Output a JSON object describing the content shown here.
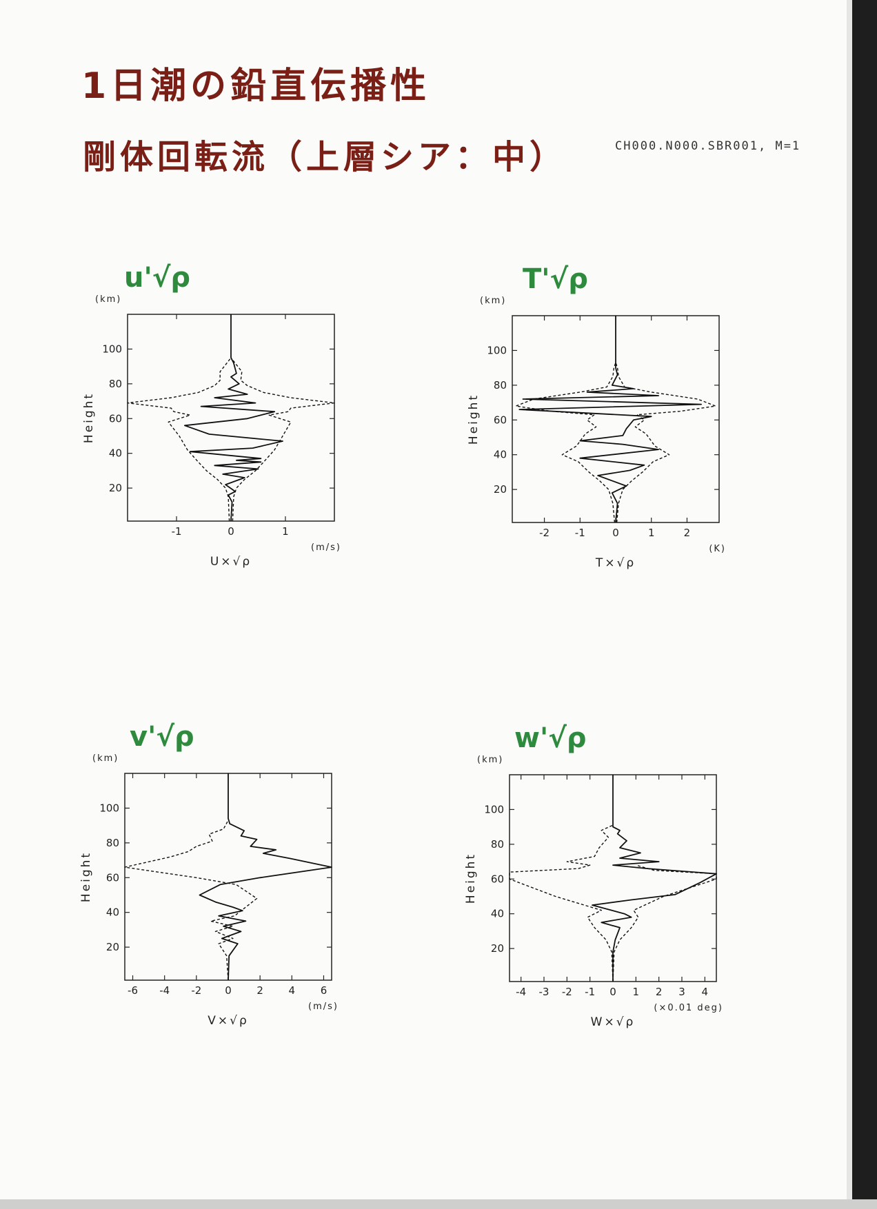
{
  "header": {
    "title_line1": "1日潮の鉛直伝播性",
    "title_line2": "剛体回転流（上層シア：中）",
    "run_id": "CH000.N000.SBR001, M=1"
  },
  "chart_data": [
    {
      "type": "line",
      "annotation": "u'√ρ",
      "xlabel": "U×√ρ",
      "xunit": "(m/s)",
      "ylabel": "Height",
      "yunit": "(km)",
      "xlim": [
        -1.9,
        1.9
      ],
      "ylim": [
        1,
        120
      ],
      "xticks": [
        -1,
        0,
        1
      ],
      "yticks": [
        20,
        40,
        60,
        80,
        100
      ],
      "series": [
        {
          "style": "solid",
          "points": [
            [
              0,
              1
            ],
            [
              0.02,
              12
            ],
            [
              -0.05,
              16
            ],
            [
              0.08,
              18
            ],
            [
              -0.1,
              22
            ],
            [
              0.25,
              26
            ],
            [
              -0.15,
              28
            ],
            [
              0.5,
              31
            ],
            [
              -0.3,
              33
            ],
            [
              0.55,
              35
            ],
            [
              0.1,
              36
            ],
            [
              0.55,
              37
            ],
            [
              -0.75,
              41
            ],
            [
              0.4,
              43
            ],
            [
              0.95,
              47
            ],
            [
              -0.4,
              51
            ],
            [
              -0.85,
              56
            ],
            [
              0.3,
              60
            ],
            [
              0.8,
              64
            ],
            [
              -0.55,
              67
            ],
            [
              0.45,
              69
            ],
            [
              -0.3,
              72
            ],
            [
              0.3,
              74
            ],
            [
              -0.05,
              77
            ],
            [
              0.15,
              80
            ],
            [
              0,
              84
            ],
            [
              0.1,
              86
            ],
            [
              0.05,
              92
            ],
            [
              0,
              95
            ],
            [
              0,
              120
            ]
          ]
        },
        {
          "style": "dashed",
          "points": [
            [
              0.03,
              1
            ],
            [
              0.05,
              15
            ],
            [
              0.1,
              20
            ],
            [
              0.25,
              25
            ],
            [
              0.45,
              30
            ],
            [
              0.6,
              35
            ],
            [
              0.8,
              42
            ],
            [
              0.95,
              50
            ],
            [
              1.1,
              58
            ],
            [
              0.7,
              62
            ],
            [
              1.05,
              64
            ],
            [
              1.1,
              66
            ],
            [
              1.9,
              69
            ],
            [
              1.1,
              72
            ],
            [
              0.6,
              75
            ],
            [
              0.3,
              79
            ],
            [
              0.18,
              82
            ],
            [
              0.2,
              87
            ],
            [
              0.05,
              93
            ],
            [
              0,
              95
            ]
          ]
        },
        {
          "style": "dashed",
          "points": [
            [
              -0.03,
              1
            ],
            [
              -0.05,
              15
            ],
            [
              -0.1,
              20
            ],
            [
              -0.25,
              25
            ],
            [
              -0.45,
              30
            ],
            [
              -0.6,
              35
            ],
            [
              -0.8,
              42
            ],
            [
              -0.95,
              50
            ],
            [
              -1.15,
              58
            ],
            [
              -0.75,
              62
            ],
            [
              -1.05,
              64
            ],
            [
              -1.1,
              66
            ],
            [
              -1.9,
              69
            ],
            [
              -1.1,
              72
            ],
            [
              -0.6,
              75
            ],
            [
              -0.3,
              79
            ],
            [
              -0.2,
              82
            ],
            [
              -0.2,
              87
            ],
            [
              -0.05,
              93
            ],
            [
              0,
              95
            ]
          ]
        }
      ]
    },
    {
      "type": "line",
      "annotation": "T'√ρ",
      "xlabel": "T×√ρ",
      "xunit": "(K)",
      "ylabel": "Height",
      "yunit": "(km)",
      "xlim": [
        -2.9,
        2.9
      ],
      "ylim": [
        1,
        120
      ],
      "xticks": [
        -2,
        -1,
        0,
        1,
        2
      ],
      "yticks": [
        20,
        40,
        60,
        80,
        100
      ],
      "series": [
        {
          "style": "solid",
          "points": [
            [
              0,
              1
            ],
            [
              0.05,
              12
            ],
            [
              -0.1,
              18
            ],
            [
              0.3,
              22
            ],
            [
              -0.5,
              28
            ],
            [
              0.4,
              31
            ],
            [
              0.8,
              34
            ],
            [
              -1.0,
              38
            ],
            [
              1.2,
              43
            ],
            [
              0.2,
              46
            ],
            [
              -1.0,
              48
            ],
            [
              0.2,
              51
            ],
            [
              0.3,
              55
            ],
            [
              0.5,
              60
            ],
            [
              1.0,
              62
            ],
            [
              -2.7,
              66
            ],
            [
              2.4,
              69
            ],
            [
              -2.6,
              72
            ],
            [
              1.2,
              74
            ],
            [
              -0.8,
              76
            ],
            [
              0.5,
              78
            ],
            [
              -0.1,
              80
            ],
            [
              0.05,
              86
            ],
            [
              0,
              90
            ],
            [
              0,
              120
            ]
          ]
        },
        {
          "style": "dashed",
          "points": [
            [
              0.03,
              1
            ],
            [
              0.08,
              12
            ],
            [
              0.2,
              20
            ],
            [
              0.45,
              25
            ],
            [
              0.75,
              30
            ],
            [
              1.05,
              36
            ],
            [
              1.5,
              40
            ],
            [
              1.1,
              45
            ],
            [
              0.85,
              52
            ],
            [
              0.55,
              56
            ],
            [
              0.8,
              60
            ],
            [
              0.6,
              63
            ],
            [
              1.8,
              65
            ],
            [
              2.8,
              68
            ],
            [
              2.3,
              72
            ],
            [
              1.0,
              76
            ],
            [
              0.25,
              79
            ],
            [
              0.08,
              85
            ],
            [
              0.05,
              90
            ],
            [
              0,
              93
            ]
          ]
        },
        {
          "style": "dashed",
          "points": [
            [
              -0.03,
              1
            ],
            [
              -0.08,
              12
            ],
            [
              -0.2,
              20
            ],
            [
              -0.45,
              25
            ],
            [
              -0.75,
              30
            ],
            [
              -1.05,
              36
            ],
            [
              -1.5,
              40
            ],
            [
              -1.1,
              45
            ],
            [
              -0.85,
              52
            ],
            [
              -0.55,
              56
            ],
            [
              -0.8,
              60
            ],
            [
              -0.6,
              63
            ],
            [
              -1.8,
              65
            ],
            [
              -2.8,
              68
            ],
            [
              -2.3,
              72
            ],
            [
              -1.0,
              76
            ],
            [
              -0.25,
              79
            ],
            [
              -0.08,
              85
            ],
            [
              -0.05,
              90
            ],
            [
              0,
              93
            ]
          ]
        }
      ]
    },
    {
      "type": "line",
      "annotation": "v'√ρ",
      "xlabel": "V×√ρ",
      "xunit": "(m/s)",
      "ylabel": "Height",
      "yunit": "(km)",
      "xlim": [
        -6.5,
        6.5
      ],
      "ylim": [
        1,
        120
      ],
      "xticks": [
        -6,
        -4,
        -2,
        0,
        2,
        4,
        6
      ],
      "yticks": [
        20,
        40,
        60,
        80,
        100
      ],
      "series": [
        {
          "style": "solid",
          "points": [
            [
              0,
              1
            ],
            [
              0.05,
              15
            ],
            [
              0.6,
              22
            ],
            [
              -0.4,
              25
            ],
            [
              0.8,
              29
            ],
            [
              -0.3,
              32
            ],
            [
              1.1,
              35
            ],
            [
              -0.6,
              38
            ],
            [
              0.9,
              41
            ],
            [
              0.3,
              43
            ],
            [
              -0.8,
              46
            ],
            [
              -1.8,
              50
            ],
            [
              -0.5,
              56
            ],
            [
              2,
              60
            ],
            [
              6.5,
              66
            ],
            [
              3.9,
              71
            ],
            [
              2.2,
              74
            ],
            [
              3.0,
              76
            ],
            [
              1.4,
              78
            ],
            [
              1.8,
              82
            ],
            [
              0.8,
              84
            ],
            [
              1.0,
              87
            ],
            [
              0.1,
              91
            ],
            [
              0,
              94
            ],
            [
              0,
              120
            ]
          ]
        },
        {
          "style": "dashed",
          "points": [
            [
              0,
              1
            ],
            [
              -0.1,
              15
            ],
            [
              -0.6,
              22
            ],
            [
              0.3,
              25
            ],
            [
              -0.8,
              29
            ],
            [
              0.3,
              32
            ],
            [
              -1.1,
              35
            ],
            [
              0.4,
              38
            ],
            [
              1.8,
              48
            ],
            [
              0.5,
              56
            ],
            [
              -2,
              60
            ],
            [
              -6.5,
              66
            ],
            [
              -3.6,
              72
            ],
            [
              -2.5,
              75
            ],
            [
              -2,
              78
            ],
            [
              -1,
              81
            ],
            [
              -1.2,
              85
            ],
            [
              -0.3,
              88
            ],
            [
              0,
              93
            ]
          ]
        }
      ]
    },
    {
      "type": "line",
      "annotation": "w'√ρ",
      "xlabel": "W×√ρ",
      "xunit": "(×0.01 deg)",
      "ylabel": "Height",
      "yunit": "(km)",
      "xlim": [
        -4.5,
        4.5
      ],
      "ylim": [
        1,
        120
      ],
      "xticks": [
        -4,
        -3,
        -2,
        -1,
        0,
        1,
        2,
        3,
        4
      ],
      "yticks": [
        20,
        40,
        60,
        80,
        100
      ],
      "series": [
        {
          "style": "solid",
          "points": [
            [
              0,
              1
            ],
            [
              0,
              18
            ],
            [
              0.1,
              25
            ],
            [
              0.3,
              32
            ],
            [
              -0.5,
              35
            ],
            [
              0.8,
              38
            ],
            [
              0.5,
              40
            ],
            [
              -0.9,
              45
            ],
            [
              0.8,
              48
            ],
            [
              2.7,
              51
            ],
            [
              3.8,
              58
            ],
            [
              4.5,
              63
            ],
            [
              1.5,
              66
            ],
            [
              0,
              68
            ],
            [
              2.0,
              70
            ],
            [
              0.3,
              72
            ],
            [
              1.2,
              75
            ],
            [
              0.3,
              78
            ],
            [
              0.6,
              82
            ],
            [
              0.2,
              86
            ],
            [
              0.3,
              88
            ],
            [
              0,
              90
            ],
            [
              0,
              120
            ]
          ]
        },
        {
          "style": "dashed",
          "points": [
            [
              0,
              1
            ],
            [
              -0.05,
              18
            ],
            [
              -0.3,
              25
            ],
            [
              -0.8,
              32
            ],
            [
              -1.1,
              38
            ],
            [
              -0.5,
              42
            ],
            [
              -2.5,
              50
            ],
            [
              -4.5,
              60
            ],
            [
              -4.5,
              64
            ],
            [
              -1.5,
              66
            ],
            [
              -1.0,
              68
            ],
            [
              -2.0,
              70
            ],
            [
              -0.8,
              73
            ],
            [
              -0.6,
              78
            ],
            [
              -0.2,
              84
            ],
            [
              -0.5,
              88
            ],
            [
              0,
              91
            ]
          ]
        },
        {
          "style": "dashed",
          "points": [
            [
              0,
              1
            ],
            [
              0.05,
              18
            ],
            [
              0.3,
              25
            ],
            [
              0.8,
              32
            ],
            [
              1.1,
              38
            ],
            [
              0.9,
              42
            ],
            [
              2.2,
              50
            ],
            [
              4.5,
              60
            ],
            [
              4.5,
              63
            ],
            [
              1.8,
              65
            ],
            [
              1.0,
              68
            ]
          ]
        }
      ]
    }
  ]
}
